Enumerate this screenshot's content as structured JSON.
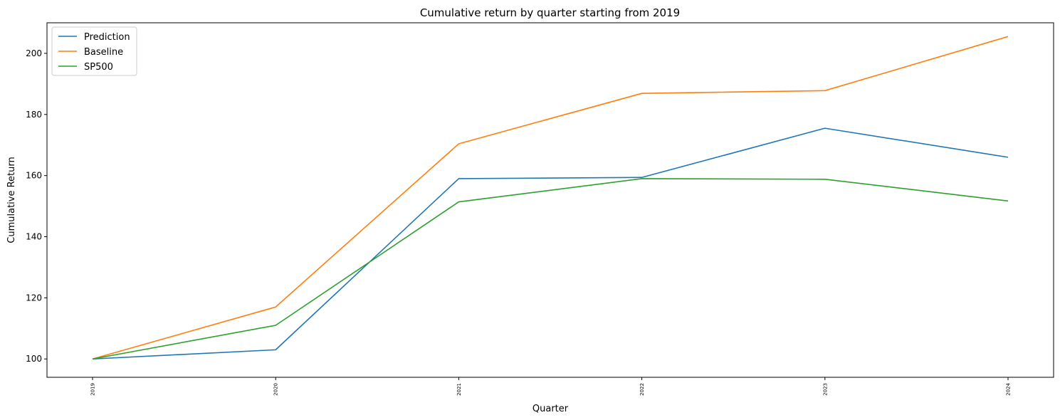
{
  "chart_data": {
    "type": "line",
    "title": "Cumulative return by quarter starting from 2019",
    "xlabel": "Quarter",
    "ylabel": "Cumulative Return",
    "categories": [
      "2019",
      "2020",
      "2021",
      "2022",
      "2023",
      "2024"
    ],
    "ylim": [
      94,
      210
    ],
    "yticks": [
      100,
      120,
      140,
      160,
      180,
      200
    ],
    "grid": false,
    "legend_position": "top-left",
    "series": [
      {
        "name": "Prediction",
        "color": "#1f77b4",
        "values": [
          100,
          103,
          159,
          159.4,
          175.5,
          166
        ]
      },
      {
        "name": "Baseline",
        "color": "#ff7f0e",
        "values": [
          100,
          117,
          170.4,
          186.9,
          187.8,
          205.5
        ]
      },
      {
        "name": "SP500",
        "color": "#2ca02c",
        "values": [
          100,
          111,
          151.4,
          159,
          158.8,
          151.7
        ]
      }
    ]
  }
}
